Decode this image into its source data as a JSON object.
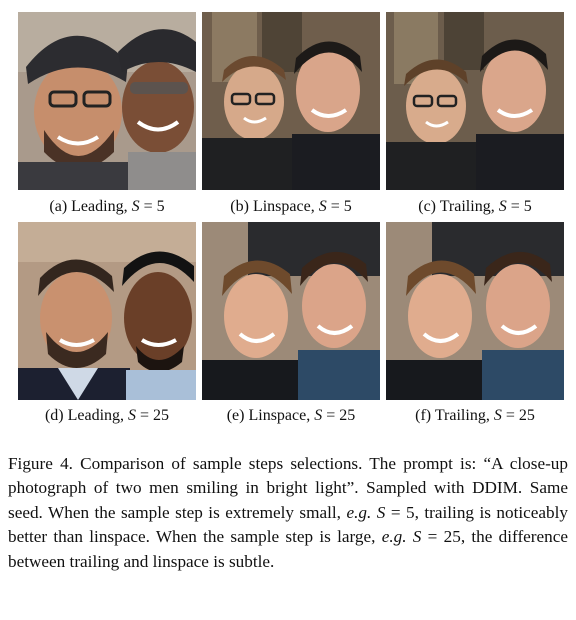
{
  "panels": [
    {
      "id": "a",
      "label": "(a) Leading, ",
      "sym": "S",
      "eq": " = 5"
    },
    {
      "id": "b",
      "label": "(b) Linspace, ",
      "sym": "S",
      "eq": " = 5"
    },
    {
      "id": "c",
      "label": "(c) Trailing, ",
      "sym": "S",
      "eq": " = 5"
    },
    {
      "id": "d",
      "label": "(d) Leading, ",
      "sym": "S",
      "eq": " = 25"
    },
    {
      "id": "e",
      "label": "(e) Linspace, ",
      "sym": "S",
      "eq": " = 25"
    },
    {
      "id": "f",
      "label": "(f) Trailing, ",
      "sym": "S",
      "eq": " = 25"
    }
  ],
  "caption": {
    "lead": "Figure 4. Comparison of sample steps selections. The prompt is: “A close-up photograph of two men smiling in bright light”. Sampled with DDIM. Same seed. When the sample step is extremely small, ",
    "eg1": "e.g.",
    "s1": " S",
    "mid": " = 5, trailing is noticeably better than linspace. When the sample step is large, ",
    "eg2": "e.g.",
    "s2": " S",
    "tail": " = 25, the difference between trailing and linspace is subtle."
  }
}
